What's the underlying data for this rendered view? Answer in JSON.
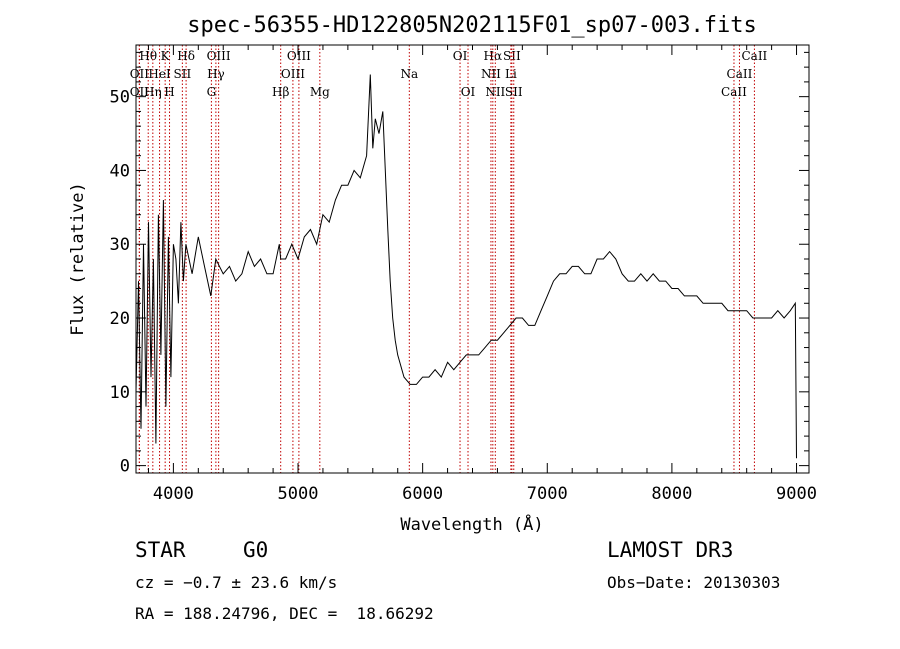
{
  "chart_data": {
    "type": "line",
    "title": "spec-56355-HD122805N202115F01_sp07-003.fits",
    "xlabel": "Wavelength (Å)",
    "ylabel": "Flux (relative)",
    "xlim": [
      3700,
      9100
    ],
    "ylim": [
      -1,
      57
    ],
    "xticks": [
      4000,
      5000,
      6000,
      7000,
      8000,
      9000
    ],
    "yticks": [
      0,
      10,
      20,
      30,
      40,
      50
    ],
    "grid": false,
    "series": [
      {
        "x": [
          3700,
          3720,
          3740,
          3760,
          3780,
          3800,
          3820,
          3840,
          3860,
          3880,
          3900,
          3920,
          3940,
          3960,
          3980,
          4000,
          4020,
          4040,
          4060,
          4080,
          4100,
          4150,
          4200,
          4250,
          4300,
          4340,
          4400,
          4450,
          4500,
          4550,
          4600,
          4650,
          4700,
          4750,
          4800,
          4850,
          4861,
          4900,
          4950,
          5000,
          5050,
          5100,
          5150,
          5200,
          5250,
          5300,
          5350,
          5400,
          5450,
          5500,
          5550,
          5580,
          5600,
          5620,
          5650,
          5680,
          5700,
          5720,
          5740,
          5760,
          5780,
          5800,
          5850,
          5900,
          5950,
          6000,
          6050,
          6100,
          6150,
          6200,
          6250,
          6300,
          6350,
          6400,
          6450,
          6500,
          6550,
          6600,
          6650,
          6700,
          6750,
          6800,
          6850,
          6900,
          6950,
          7000,
          7050,
          7100,
          7150,
          7200,
          7250,
          7300,
          7350,
          7400,
          7450,
          7500,
          7550,
          7600,
          7650,
          7700,
          7750,
          7800,
          7850,
          7900,
          7950,
          8000,
          8050,
          8100,
          8150,
          8200,
          8250,
          8300,
          8350,
          8400,
          8450,
          8500,
          8550,
          8600,
          8650,
          8700,
          8750,
          8800,
          8850,
          8900,
          8950,
          8990,
          9000
        ],
        "values": [
          10,
          25,
          5,
          30,
          8,
          33,
          12,
          28,
          3,
          34,
          15,
          36,
          8,
          31,
          12,
          30,
          28,
          22,
          33,
          25,
          30,
          26,
          31,
          27,
          23,
          28,
          26,
          27,
          25,
          26,
          29,
          27,
          28,
          26,
          26,
          30,
          28,
          28,
          30,
          28,
          31,
          32,
          30,
          34,
          33,
          36,
          38,
          38,
          40,
          39,
          42,
          53,
          43,
          47,
          45,
          48,
          40,
          32,
          25,
          20,
          17,
          15,
          12,
          11,
          11,
          12,
          12,
          13,
          12,
          14,
          13,
          14,
          15,
          15,
          15,
          16,
          17,
          17,
          18,
          19,
          20,
          20,
          19,
          19,
          21,
          23,
          25,
          26,
          26,
          27,
          27,
          26,
          26,
          28,
          28,
          29,
          28,
          26,
          25,
          25,
          26,
          25,
          26,
          25,
          25,
          24,
          24,
          23,
          23,
          23,
          22,
          22,
          22,
          22,
          21,
          21,
          21,
          21,
          20,
          20,
          20,
          20,
          21,
          20,
          21,
          22,
          1
        ]
      }
    ],
    "line_markers": [
      {
        "label": "Hθ",
        "x": 3798,
        "row": 0
      },
      {
        "label": "OII",
        "x": 3727,
        "row": 1
      },
      {
        "label": "OII",
        "x": 3727,
        "row": 2
      },
      {
        "label": "K",
        "x": 3934,
        "row": 0
      },
      {
        "label": "HeI",
        "x": 3889,
        "row": 1
      },
      {
        "label": "Hη",
        "x": 3835,
        "row": 2
      },
      {
        "label": "SII",
        "x": 4072,
        "row": 1
      },
      {
        "label": "H",
        "x": 3969,
        "row": 2
      },
      {
        "label": "Hδ",
        "x": 4102,
        "row": 0
      },
      {
        "label": "OIII",
        "x": 4363,
        "row": 0
      },
      {
        "label": "Hγ",
        "x": 4341,
        "row": 1
      },
      {
        "label": "G",
        "x": 4305,
        "row": 2
      },
      {
        "label": "OIII",
        "x": 5007,
        "row": 0
      },
      {
        "label": "OIII",
        "x": 4959,
        "row": 1
      },
      {
        "label": "Hβ",
        "x": 4861,
        "row": 2
      },
      {
        "label": "Mg",
        "x": 5175,
        "row": 2
      },
      {
        "label": "Na",
        "x": 5893,
        "row": 1
      },
      {
        "label": "OI",
        "x": 6300,
        "row": 0
      },
      {
        "label": "OI",
        "x": 6364,
        "row": 2
      },
      {
        "label": "Hα",
        "x": 6563,
        "row": 0
      },
      {
        "label": "SII",
        "x": 6716,
        "row": 0
      },
      {
        "label": "NII",
        "x": 6548,
        "row": 1
      },
      {
        "label": "Li",
        "x": 6708,
        "row": 1
      },
      {
        "label": "NII",
        "x": 6583,
        "row": 2
      },
      {
        "label": "SII",
        "x": 6731,
        "row": 2
      },
      {
        "label": "CaII",
        "x": 8662,
        "row": 0
      },
      {
        "label": "CaII",
        "x": 8542,
        "row": 1
      },
      {
        "label": "CaII",
        "x": 8498,
        "row": 2
      }
    ]
  },
  "info": {
    "object_class": "STAR",
    "subclass": "G0",
    "survey": "LAMOST DR3",
    "cz": "cz = −0.7 ± 23.6 km/s",
    "obs_date": "Obs−Date: 20130303",
    "coords": "RA = 188.24796, DEC =  18.66292"
  }
}
